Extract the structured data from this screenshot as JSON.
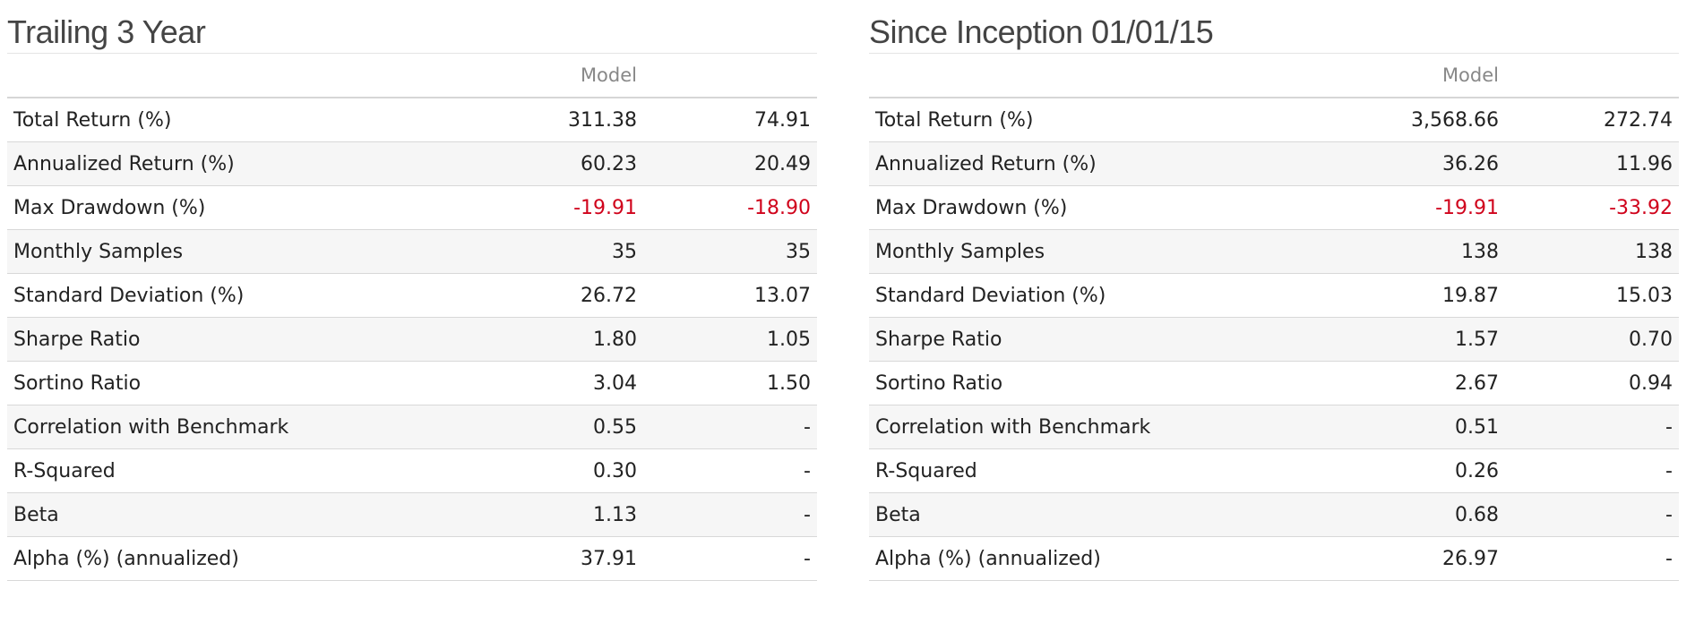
{
  "panels": [
    {
      "title": "Trailing 3 Year",
      "headers": [
        "",
        "Model",
        ""
      ],
      "rows": [
        {
          "label": "Total Return (%)",
          "model": "311.38",
          "bench": "74.91"
        },
        {
          "label": "Annualized Return (%)",
          "model": "60.23",
          "bench": "20.49"
        },
        {
          "label": "Max Drawdown (%)",
          "model": "-19.91",
          "bench": "-18.90"
        },
        {
          "label": "Monthly Samples",
          "model": "35",
          "bench": "35"
        },
        {
          "label": "Standard Deviation (%)",
          "model": "26.72",
          "bench": "13.07"
        },
        {
          "label": "Sharpe Ratio",
          "model": "1.80",
          "bench": "1.05"
        },
        {
          "label": "Sortino Ratio",
          "model": "3.04",
          "bench": "1.50"
        },
        {
          "label": "Correlation with Benchmark",
          "model": "0.55",
          "bench": "-"
        },
        {
          "label": "R-Squared",
          "model": "0.30",
          "bench": "-"
        },
        {
          "label": "Beta",
          "model": "1.13",
          "bench": "-"
        },
        {
          "label": "Alpha (%) (annualized)",
          "model": "37.91",
          "bench": "-"
        }
      ]
    },
    {
      "title": "Since Inception 01/01/15",
      "headers": [
        "",
        "Model",
        ""
      ],
      "rows": [
        {
          "label": "Total Return (%)",
          "model": "3,568.66",
          "bench": "272.74"
        },
        {
          "label": "Annualized Return (%)",
          "model": "36.26",
          "bench": "11.96"
        },
        {
          "label": "Max Drawdown (%)",
          "model": "-19.91",
          "bench": "-33.92"
        },
        {
          "label": "Monthly Samples",
          "model": "138",
          "bench": "138"
        },
        {
          "label": "Standard Deviation (%)",
          "model": "19.87",
          "bench": "15.03"
        },
        {
          "label": "Sharpe Ratio",
          "model": "1.57",
          "bench": "0.70"
        },
        {
          "label": "Sortino Ratio",
          "model": "2.67",
          "bench": "0.94"
        },
        {
          "label": "Correlation with Benchmark",
          "model": "0.51",
          "bench": "-"
        },
        {
          "label": "R-Squared",
          "model": "0.26",
          "bench": "-"
        },
        {
          "label": "Beta",
          "model": "0.68",
          "bench": "-"
        },
        {
          "label": "Alpha (%) (annualized)",
          "model": "26.97",
          "bench": "-"
        }
      ]
    }
  ],
  "colors": {
    "negative": "#d0021b",
    "header_text": "#888888",
    "title_text": "#444444",
    "row_alt": "#f6f6f6"
  }
}
